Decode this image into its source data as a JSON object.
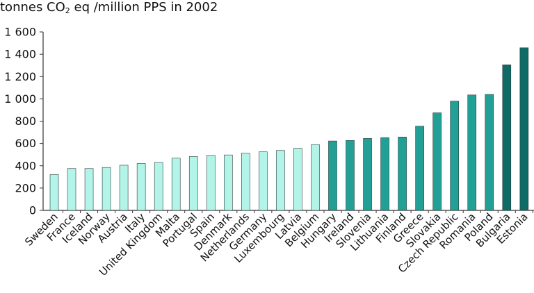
{
  "chart_data": {
    "type": "bar",
    "title_prefix": "tonnes CO",
    "title_sub": "2",
    "title_suffix": " eq /million PPS in 2002",
    "xlabel": "",
    "ylabel": "",
    "ylim": [
      0,
      1600
    ],
    "y_ticks": [
      0,
      200,
      400,
      600,
      800,
      1000,
      1200,
      1400,
      1600
    ],
    "y_tick_labels": [
      "0",
      "200",
      "400",
      "600",
      "800",
      "1 000",
      "1 200",
      "1 400",
      "1 600"
    ],
    "grid": false,
    "categories": [
      "Sweden",
      "France",
      "Iceland",
      "Norway",
      "Austria",
      "Italy",
      "United Kingdom",
      "Malta",
      "Portugal",
      "Spain",
      "Denmark",
      "Netherlands",
      "Germany",
      "Luxembourg",
      "Latvia",
      "Belgium",
      "Hungary",
      "Ireland",
      "Slovenia",
      "Lithuania",
      "Finland",
      "Greece",
      "Slovakia",
      "Czech Republic",
      "Romania",
      "Poland",
      "Bulgaria",
      "Estonia"
    ],
    "values": [
      322,
      375,
      375,
      385,
      405,
      420,
      430,
      468,
      483,
      493,
      497,
      513,
      525,
      537,
      556,
      590,
      622,
      627,
      645,
      652,
      658,
      755,
      875,
      980,
      1035,
      1040,
      1305,
      1458
    ],
    "colors": {
      "light": "#b2f5e8",
      "medium": "#22a096",
      "dark": "#0f6b66",
      "bar_stroke": "#2a3b3a",
      "axis": "#333333",
      "text": "#111111"
    },
    "color_groups": [
      "light",
      "light",
      "light",
      "light",
      "light",
      "light",
      "light",
      "light",
      "light",
      "light",
      "light",
      "light",
      "light",
      "light",
      "light",
      "light",
      "medium",
      "medium",
      "medium",
      "medium",
      "medium",
      "medium",
      "medium",
      "medium",
      "medium",
      "medium",
      "dark",
      "dark"
    ]
  }
}
